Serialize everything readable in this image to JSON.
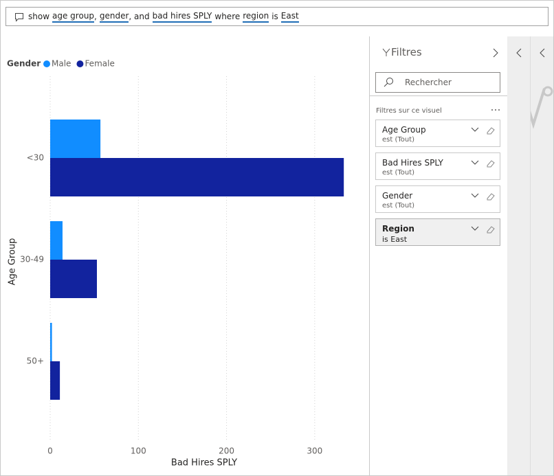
{
  "query": {
    "parts": [
      {
        "text": "show"
      },
      {
        "text": "age group",
        "underline": true
      },
      {
        "text": ","
      },
      {
        "text": "gender",
        "underline": true
      },
      {
        "text": ", and"
      },
      {
        "text": "bad hires SPLY",
        "underline": true
      },
      {
        "text": "where"
      },
      {
        "text": "region",
        "underline": true
      },
      {
        "text": "is"
      },
      {
        "text": "East",
        "underline": true
      }
    ]
  },
  "chart_data": {
    "type": "bar",
    "orientation": "horizontal",
    "legend_title": "Gender",
    "legend": "top-left",
    "x_label": "Bad Hires SPLY",
    "y_label": "Age Group",
    "categories": [
      "<30",
      "30-49",
      "50+"
    ],
    "series": [
      {
        "name": "Male",
        "color": "#118DFF",
        "values": [
          57,
          14,
          2
        ]
      },
      {
        "name": "Female",
        "color": "#12239E",
        "values": [
          333,
          53,
          11
        ]
      }
    ],
    "xlim": [
      0,
      350
    ],
    "xticks": [
      0,
      100,
      200,
      300
    ],
    "grid": true
  },
  "filters": {
    "title": "Filtres",
    "search_placeholder": "Rechercher",
    "section": "Filtres sur ce visuel",
    "cards": [
      {
        "name": "Age Group",
        "state": "est (Tout)"
      },
      {
        "name": "Bad Hires SPLY",
        "state": "est (Tout)"
      },
      {
        "name": "Gender",
        "state": "est (Tout)"
      },
      {
        "name": "Region",
        "state": "is East",
        "active": true
      }
    ]
  }
}
